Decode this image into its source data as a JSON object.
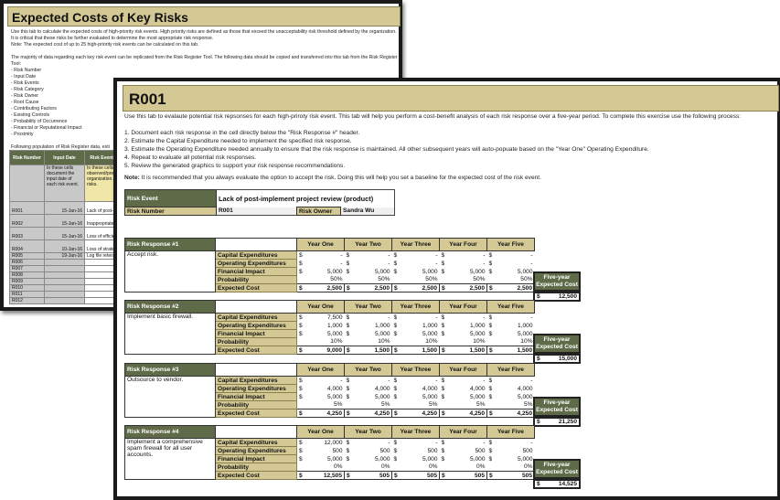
{
  "back": {
    "title": "Expected Costs of Key Risks",
    "intro": [
      "Use this tab to calculate the expected costs of high-priority risk events. High priority risks are defined as those that exceed the unacceptability risk threshold defined by the organization. It is critical that these risks be further evaluated to determine the most appropriate risk response.",
      "Note: The expected cost of up to 25 high-priority risk events can be calculated on this tab.",
      "",
      "The majority of data regarding each key risk event can be replicated from the Risk Register Tool. The following data should be copied and transferred into this tab from the Risk Register Tool:",
      "- Risk Number",
      "- Input Date",
      "- Risk Events",
      "- Risk Category",
      "- Risk Owner",
      "- Root Cause",
      "- Contributing Factors",
      "- Existing Controls",
      "- Probability of Occurrence",
      "- Financial or Reputational Impact",
      "- Proximity",
      "",
      "Following population of Risk Register data, esti",
      "If necessary, use the \"Filters\" following each c"
    ],
    "headers": [
      "Risk Number",
      "Input Date",
      "Risk Events"
    ],
    "hints": [
      "",
      "In these cells document the input date of each risk event.",
      "In these cells t observed/pred organization. U risks."
    ],
    "rows": [
      [
        "R001",
        "15-Jan-16",
        "Lack of post-i"
      ],
      [
        "R002",
        "15-Jan-16",
        "Inappropriate f"
      ],
      [
        "R003",
        "15-Jan-16",
        "Loss of efficie"
      ],
      [
        "R004",
        "10-Jan-16",
        "Loss of strate"
      ],
      [
        "R005",
        "19-Jan-16",
        "Log file retenti"
      ],
      [
        "R006",
        "",
        ""
      ],
      [
        "R007",
        "",
        ""
      ],
      [
        "R008",
        "",
        ""
      ],
      [
        "R009",
        "",
        ""
      ],
      [
        "R010",
        "",
        ""
      ],
      [
        "R011",
        "",
        ""
      ],
      [
        "R012",
        "",
        ""
      ]
    ]
  },
  "front": {
    "title": "R001",
    "intro": "Use this tab to evalaute potential risk repsonses for each high-priroty risk event. This tab will help you perform a cost-benefit analysis of each risk response over a five-year period. To complete this exercise use the following process:",
    "steps": [
      "1. Document each risk response in the cell directly below the \"Risk Response #\" header.",
      "2. Estimate the Capital Expenditure needed to implement the specified risk response.",
      "3. Estimate the Operating Expenditure needed annually to ensure that the risk response is maintained. All other subsequent years will  auto-popuate based on the \"Year One\" Operating Expenditure.",
      "4. Repeat to evaluate all potential risk responses.",
      "5. Review the generated graphics to support your risk response recommendations."
    ],
    "note_label": "Note:",
    "note": " It is recommended that you always evaluate the option to accept the risk. Doing this will help you set a baseline for the expected cost of the risk event.",
    "event_label": "Risk Event",
    "event_value": "Lack of post-implement project review (product)",
    "number_label": "Risk Number",
    "number_value": "R001",
    "owner_label": "Risk Owner",
    "owner_value": "Sandra Wu",
    "years": [
      "Year One",
      "Year Two",
      "Year Three",
      "Year Four",
      "Year Five"
    ],
    "categories": [
      "Capital Expenditures",
      "Operating Expenditures",
      "Financial Impact",
      "Probability",
      "Expected Cost"
    ],
    "five_year_label": "Five-year Expected Cost",
    "currency": "$",
    "responses": [
      {
        "title": "Risk Response #1",
        "desc": "Accept risk.",
        "capex": [
          "-",
          "-",
          "-",
          "-",
          "-"
        ],
        "opex": [
          "-",
          "-",
          "-",
          "-",
          "-"
        ],
        "impact": [
          "5,000",
          "5,000",
          "5,000",
          "5,000",
          "5,000"
        ],
        "prob": [
          "50%",
          "50%",
          "50%",
          "50%",
          "50%"
        ],
        "expected": [
          "2,500",
          "2,500",
          "2,500",
          "2,500",
          "2,500"
        ],
        "total": "12,500"
      },
      {
        "title": "Risk Response #2",
        "desc": "Implement basic firewall.",
        "capex": [
          "7,500",
          "-",
          "-",
          "-",
          "-"
        ],
        "opex": [
          "1,000",
          "1,000",
          "1,000",
          "1,000",
          "1,000"
        ],
        "impact": [
          "5,000",
          "5,000",
          "5,000",
          "5,000",
          "5,000"
        ],
        "prob": [
          "10%",
          "10%",
          "10%",
          "10%",
          "10%"
        ],
        "expected": [
          "9,000",
          "1,500",
          "1,500",
          "1,500",
          "1,500"
        ],
        "total": "15,000"
      },
      {
        "title": "Risk Response #3",
        "desc": "Outsource to vendor.",
        "capex": [
          "-",
          "-",
          "-",
          "-",
          "-"
        ],
        "opex": [
          "4,000",
          "4,000",
          "4,000",
          "4,000",
          "4,000"
        ],
        "impact": [
          "5,000",
          "5,000",
          "5,000",
          "5,000",
          "5,000"
        ],
        "prob": [
          "5%",
          "5%",
          "5%",
          "5%",
          "5%"
        ],
        "expected": [
          "4,250",
          "4,250",
          "4,250",
          "4,250",
          "4,250"
        ],
        "total": "21,250"
      },
      {
        "title": "Risk Response #4",
        "desc": "Implement a comprehensive spam firewall for all user accounts.",
        "capex": [
          "12,000",
          "-",
          "-",
          "-",
          "-"
        ],
        "opex": [
          "500",
          "500",
          "500",
          "500",
          "500"
        ],
        "impact": [
          "5,000",
          "5,000",
          "5,000",
          "5,000",
          "5,000"
        ],
        "prob": [
          "0%",
          "0%",
          "0%",
          "0%",
          "0%"
        ],
        "expected": [
          "12,505",
          "505",
          "505",
          "505",
          "505"
        ],
        "total": "14,525"
      }
    ]
  }
}
